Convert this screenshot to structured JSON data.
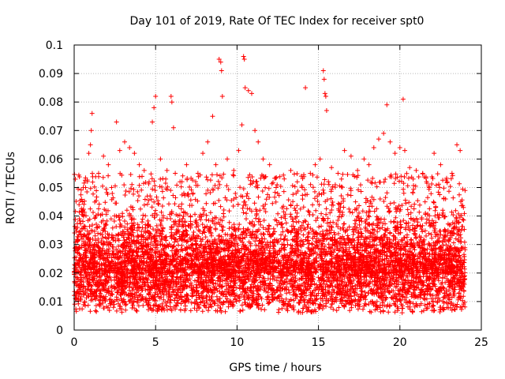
{
  "chart_data": {
    "type": "scatter",
    "title": "Day 101 of 2019, Rate Of TEC Index for receiver spt0",
    "xlabel": "GPS time / hours",
    "ylabel": "ROTI / TECUs",
    "xlim": [
      0,
      25
    ],
    "ylim": [
      0,
      0.1
    ],
    "xticks": [
      {
        "v": 0,
        "label": "0"
      },
      {
        "v": 5,
        "label": "5"
      },
      {
        "v": 10,
        "label": "10"
      },
      {
        "v": 15,
        "label": "15"
      },
      {
        "v": 20,
        "label": "20"
      },
      {
        "v": 25,
        "label": "25"
      }
    ],
    "yticks": [
      {
        "v": 0,
        "label": "0"
      },
      {
        "v": 0.01,
        "label": "0.01"
      },
      {
        "v": 0.02,
        "label": "0.02"
      },
      {
        "v": 0.03,
        "label": "0.03"
      },
      {
        "v": 0.04,
        "label": "0.04"
      },
      {
        "v": 0.05,
        "label": "0.05"
      },
      {
        "v": 0.06,
        "label": "0.06"
      },
      {
        "v": 0.07,
        "label": "0.07"
      },
      {
        "v": 0.08,
        "label": "0.08"
      },
      {
        "v": 0.09,
        "label": "0.09"
      },
      {
        "v": 0.1,
        "label": "0.1"
      }
    ],
    "grid": true,
    "marker": "+",
    "color": "#ff0000",
    "series": [
      {
        "name": "ROTI",
        "points": [
          [
            0.2,
            0.036
          ],
          [
            0.3,
            0.044
          ],
          [
            0.5,
            0.045
          ],
          [
            0.7,
            0.05
          ],
          [
            0.9,
            0.062
          ],
          [
            1.0,
            0.065
          ],
          [
            1.05,
            0.07
          ],
          [
            1.1,
            0.076
          ],
          [
            1.5,
            0.055
          ],
          [
            1.8,
            0.061
          ],
          [
            2.1,
            0.058
          ],
          [
            2.3,
            0.05
          ],
          [
            2.6,
            0.073
          ],
          [
            2.8,
            0.063
          ],
          [
            3.1,
            0.066
          ],
          [
            3.4,
            0.064
          ],
          [
            3.7,
            0.062
          ],
          [
            4.0,
            0.058
          ],
          [
            4.3,
            0.056
          ],
          [
            4.6,
            0.052
          ],
          [
            4.8,
            0.073
          ],
          [
            4.9,
            0.078
          ],
          [
            5.0,
            0.082
          ],
          [
            5.3,
            0.06
          ],
          [
            5.7,
            0.056
          ],
          [
            5.95,
            0.082
          ],
          [
            6.0,
            0.08
          ],
          [
            6.1,
            0.071
          ],
          [
            6.5,
            0.052
          ],
          [
            6.9,
            0.058
          ],
          [
            7.3,
            0.048
          ],
          [
            7.6,
            0.055
          ],
          [
            7.9,
            0.062
          ],
          [
            8.2,
            0.066
          ],
          [
            8.5,
            0.075
          ],
          [
            8.7,
            0.058
          ],
          [
            8.9,
            0.095
          ],
          [
            9.0,
            0.094
          ],
          [
            9.05,
            0.091
          ],
          [
            9.1,
            0.082
          ],
          [
            9.4,
            0.06
          ],
          [
            9.8,
            0.056
          ],
          [
            10.1,
            0.063
          ],
          [
            10.3,
            0.072
          ],
          [
            10.4,
            0.096
          ],
          [
            10.45,
            0.095
          ],
          [
            10.5,
            0.085
          ],
          [
            10.7,
            0.084
          ],
          [
            10.9,
            0.083
          ],
          [
            11.1,
            0.07
          ],
          [
            11.3,
            0.066
          ],
          [
            11.6,
            0.06
          ],
          [
            12.0,
            0.058
          ],
          [
            12.4,
            0.05
          ],
          [
            12.9,
            0.053
          ],
          [
            13.3,
            0.056
          ],
          [
            13.7,
            0.052
          ],
          [
            14.0,
            0.05
          ],
          [
            14.2,
            0.085
          ],
          [
            14.5,
            0.055
          ],
          [
            14.8,
            0.058
          ],
          [
            15.1,
            0.06
          ],
          [
            15.3,
            0.091
          ],
          [
            15.35,
            0.088
          ],
          [
            15.4,
            0.083
          ],
          [
            15.45,
            0.082
          ],
          [
            15.5,
            0.077
          ],
          [
            15.8,
            0.057
          ],
          [
            16.2,
            0.055
          ],
          [
            16.6,
            0.063
          ],
          [
            17.0,
            0.061
          ],
          [
            17.4,
            0.056
          ],
          [
            17.8,
            0.06
          ],
          [
            18.1,
            0.058
          ],
          [
            18.4,
            0.064
          ],
          [
            18.7,
            0.067
          ],
          [
            19.0,
            0.069
          ],
          [
            19.2,
            0.079
          ],
          [
            19.4,
            0.066
          ],
          [
            19.7,
            0.062
          ],
          [
            20.0,
            0.064
          ],
          [
            20.2,
            0.081
          ],
          [
            20.3,
            0.063
          ],
          [
            20.6,
            0.057
          ],
          [
            21.0,
            0.056
          ],
          [
            21.4,
            0.055
          ],
          [
            21.8,
            0.05
          ],
          [
            22.1,
            0.062
          ],
          [
            22.5,
            0.058
          ],
          [
            22.9,
            0.052
          ],
          [
            23.2,
            0.055
          ],
          [
            23.5,
            0.065
          ],
          [
            23.7,
            0.063
          ],
          [
            23.9,
            0.043
          ]
        ]
      }
    ]
  }
}
